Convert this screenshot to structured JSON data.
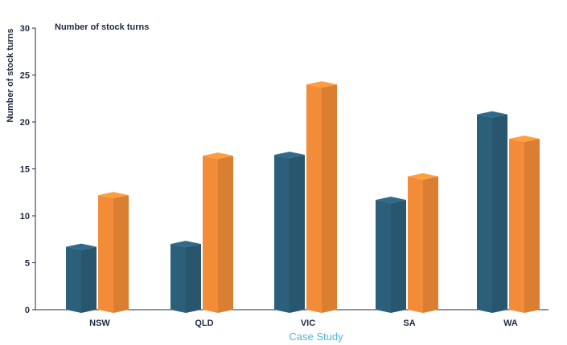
{
  "chart_data": {
    "type": "bar",
    "title": "Number of stock turns",
    "xlabel": "Case Study",
    "ylabel": "Number of stock turns",
    "categories": [
      "NSW",
      "QLD",
      "VIC",
      "SA",
      "WA"
    ],
    "series": [
      {
        "color": "#2b5f7a",
        "values": [
          6.7,
          7.0,
          16.5,
          11.7,
          20.8
        ]
      },
      {
        "color": "#f28c38",
        "values": [
          12.2,
          16.4,
          24.0,
          14.2,
          18.2
        ]
      }
    ],
    "ylim": [
      0,
      30
    ],
    "yticks": [
      "0",
      "5",
      "10",
      "15",
      "20",
      "25",
      "30"
    ],
    "grid": false,
    "legend": "none"
  }
}
